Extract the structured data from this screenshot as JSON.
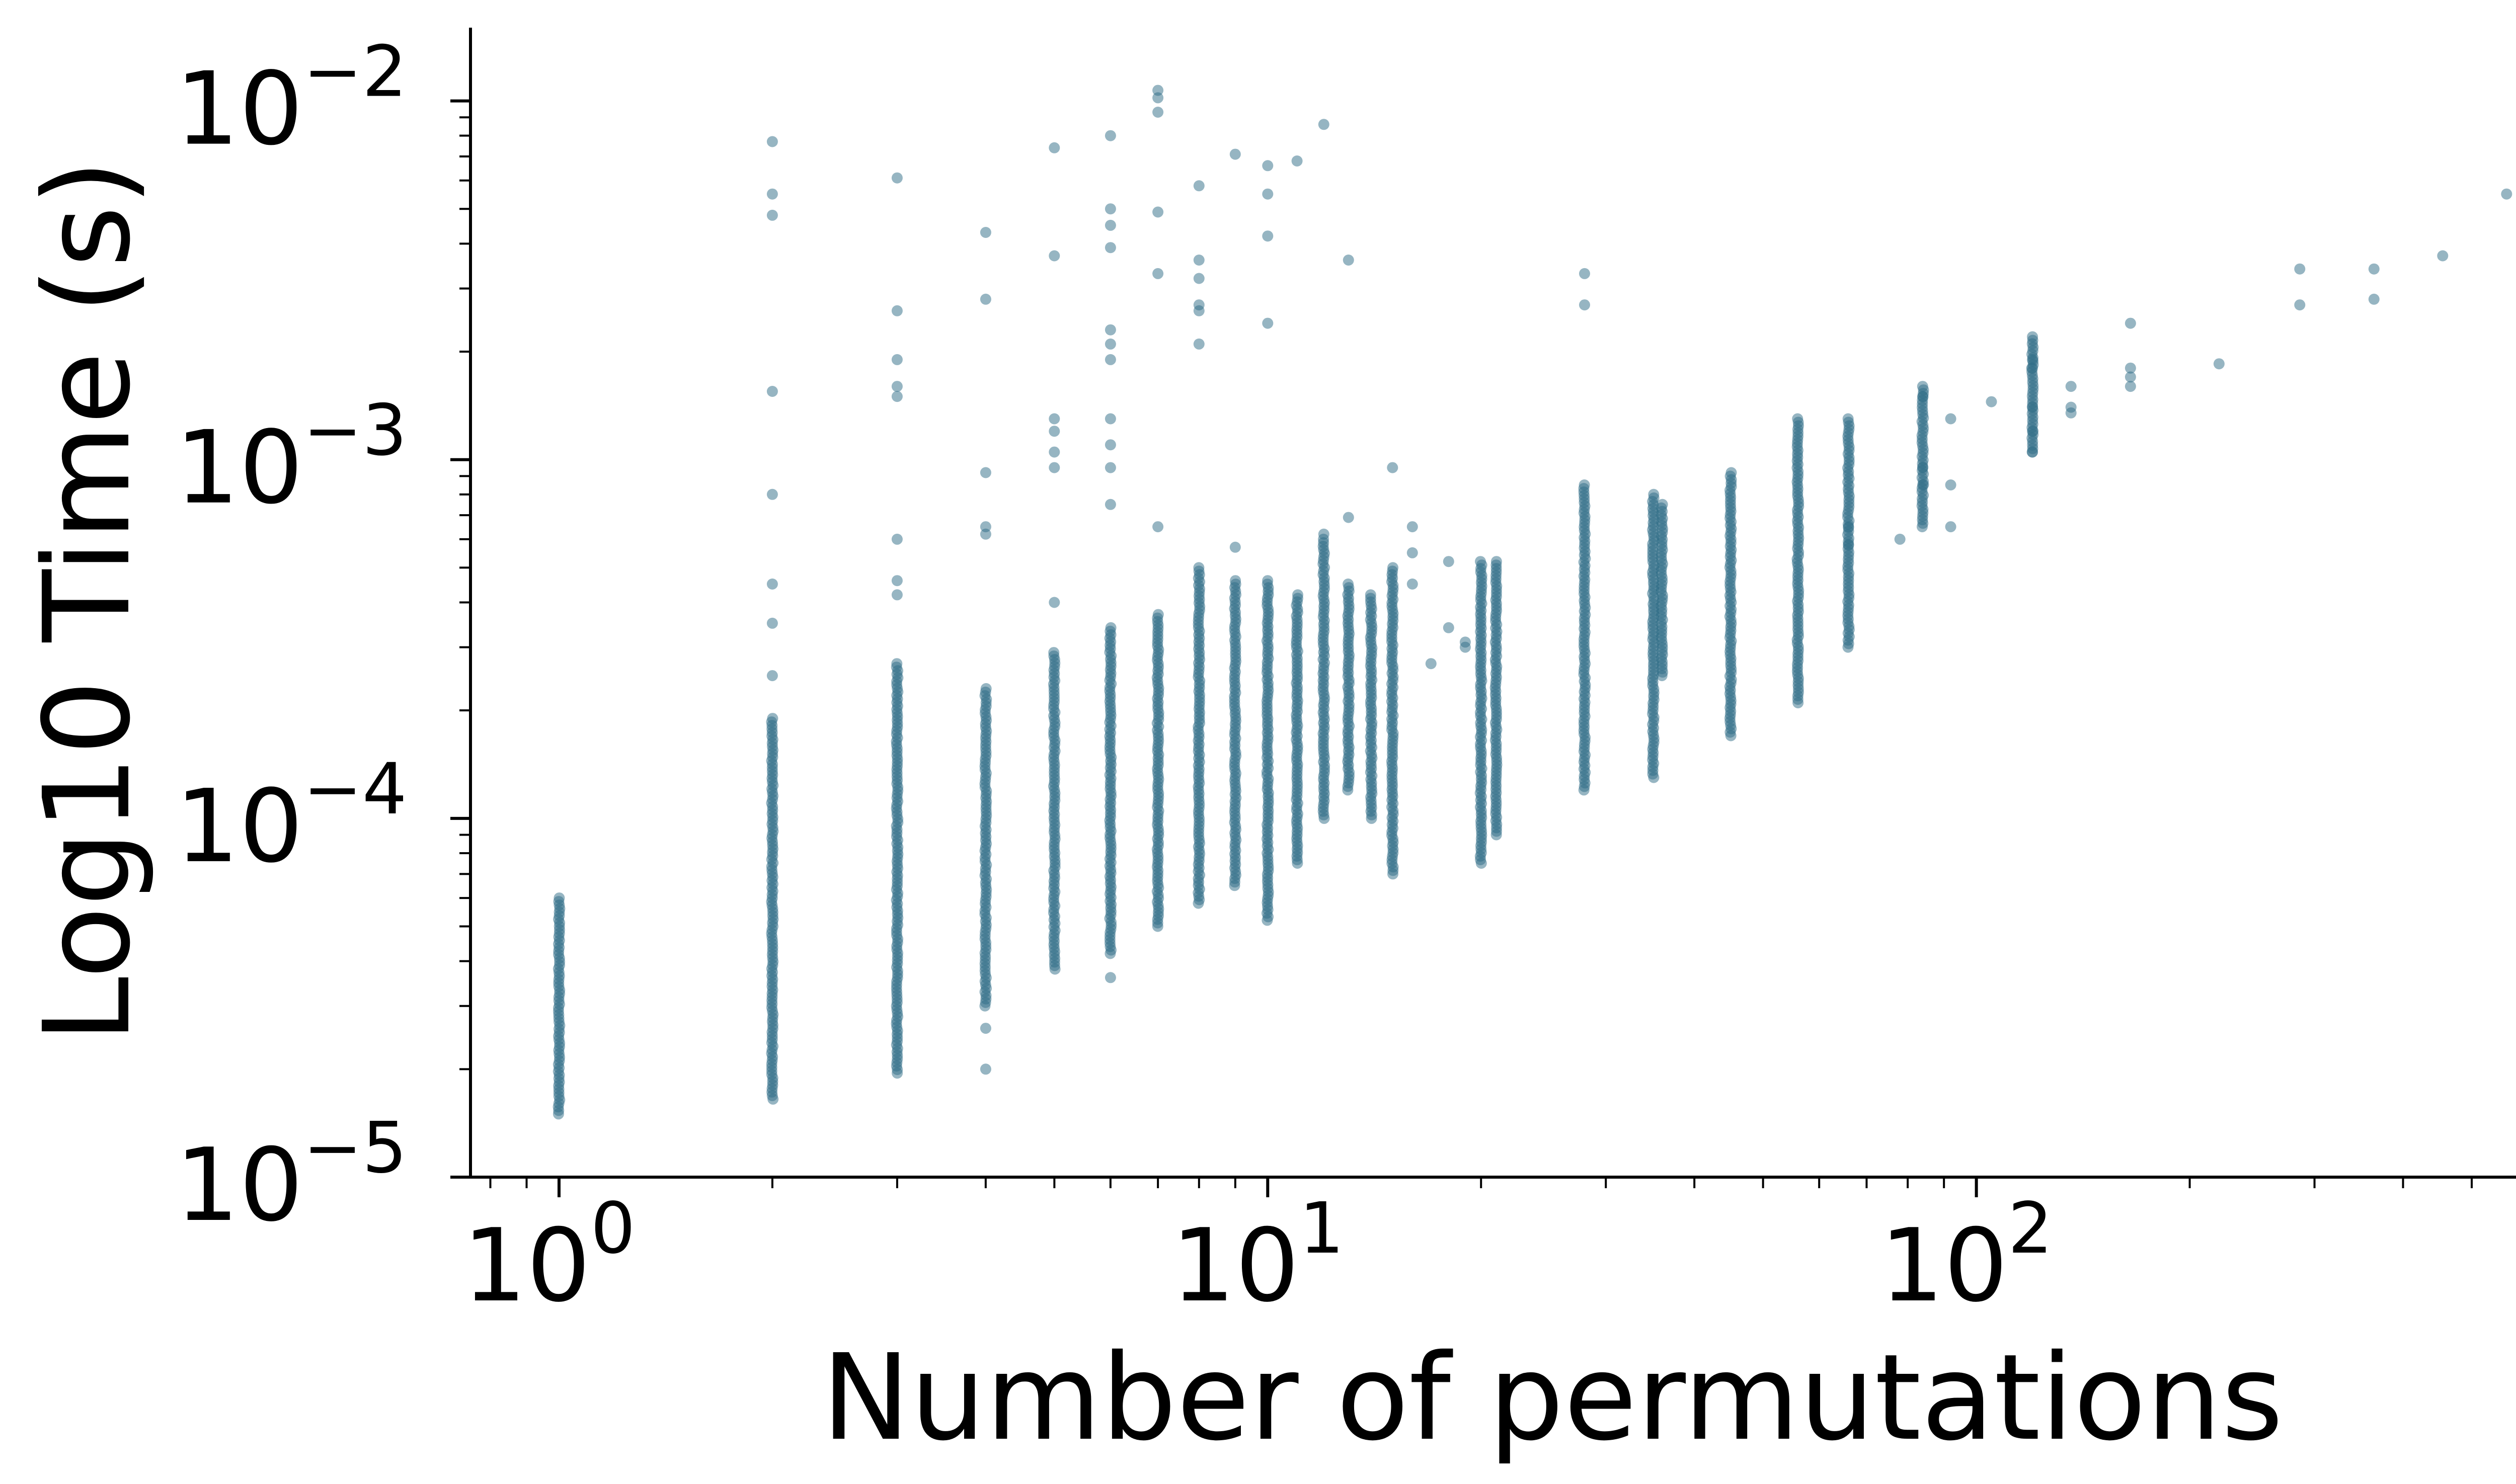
{
  "chart_data": {
    "type": "scatter",
    "xlabel": "Number of permutations",
    "ylabel": "Log10 Time (s)",
    "x_scale": "log",
    "y_scale": "log",
    "xlim": [
      0.75,
      750
    ],
    "ylim": [
      1e-05,
      0.016
    ],
    "grid": false,
    "legend": "none",
    "marker_color": "#2e6b86",
    "marker_opacity": 0.5,
    "x_ticks": [
      {
        "base": "10",
        "exp": "0"
      },
      {
        "base": "10",
        "exp": "1"
      },
      {
        "base": "10",
        "exp": "2"
      }
    ],
    "y_ticks": [
      {
        "base": "10",
        "exp": "−5"
      },
      {
        "base": "10",
        "exp": "−4"
      },
      {
        "base": "10",
        "exp": "−3"
      },
      {
        "base": "10",
        "exp": "−2"
      }
    ],
    "x_tick_values": [
      1,
      10,
      100
    ],
    "y_tick_values": [
      1e-05,
      0.0001,
      0.001,
      0.01
    ],
    "column_ranges": [
      {
        "x": 1,
        "ymin": 1.5e-05,
        "ymax": 6e-05
      },
      {
        "x": 2,
        "ymin": 1.65e-05,
        "ymax": 0.00019
      },
      {
        "x": 3,
        "ymin": 1.95e-05,
        "ymax": 0.00027
      },
      {
        "x": 4,
        "ymin": 3e-05,
        "ymax": 0.00023
      },
      {
        "x": 5,
        "ymin": 3.8e-05,
        "ymax": 0.00029
      },
      {
        "x": 6,
        "ymin": 4.2e-05,
        "ymax": 0.00034
      },
      {
        "x": 7,
        "ymin": 5e-05,
        "ymax": 0.00037
      },
      {
        "x": 8,
        "ymin": 5.8e-05,
        "ymax": 0.0005
      },
      {
        "x": 9,
        "ymin": 6.5e-05,
        "ymax": 0.00046
      },
      {
        "x": 10,
        "ymin": 5.2e-05,
        "ymax": 0.00046
      },
      {
        "x": 11,
        "ymin": 7.5e-05,
        "ymax": 0.00042
      },
      {
        "x": 12,
        "ymin": 0.0001,
        "ymax": 0.0006
      },
      {
        "x": 13,
        "ymin": 0.00012,
        "ymax": 0.00045
      },
      {
        "x": 14,
        "ymin": 0.0001,
        "ymax": 0.00042
      },
      {
        "x": 15,
        "ymin": 7e-05,
        "ymax": 0.0005
      },
      {
        "x": 20,
        "ymin": 7.5e-05,
        "ymax": 0.00052
      },
      {
        "x": 21,
        "ymin": 9e-05,
        "ymax": 0.00052
      },
      {
        "x": 28,
        "ymin": 0.00012,
        "ymax": 0.00085
      },
      {
        "x": 35,
        "ymin": 0.00013,
        "ymax": 0.0008
      },
      {
        "x": 36,
        "ymin": 0.00025,
        "ymax": 0.00075
      },
      {
        "x": 45,
        "ymin": 0.00017,
        "ymax": 0.00092
      },
      {
        "x": 56,
        "ymin": 0.00021,
        "ymax": 0.0013
      },
      {
        "x": 66,
        "ymin": 0.0003,
        "ymax": 0.0013
      },
      {
        "x": 84,
        "ymin": 0.00065,
        "ymax": 0.0016
      },
      {
        "x": 120,
        "ymin": 0.00105,
        "ymax": 0.0022
      }
    ],
    "points": [
      [
        2,
        0.0077
      ],
      [
        2,
        0.0055
      ],
      [
        2,
        0.0048
      ],
      [
        2,
        0.00155
      ],
      [
        2,
        0.0008
      ],
      [
        2,
        0.00045
      ],
      [
        2,
        0.00035
      ],
      [
        2,
        0.00025
      ],
      [
        3,
        0.0061
      ],
      [
        3,
        0.0026
      ],
      [
        3,
        0.0019
      ],
      [
        3,
        0.0016
      ],
      [
        3,
        0.0015
      ],
      [
        3,
        0.0006
      ],
      [
        3,
        0.00046
      ],
      [
        3,
        0.00042
      ],
      [
        4,
        0.0043
      ],
      [
        4,
        0.0028
      ],
      [
        4,
        0.00092
      ],
      [
        4,
        0.00065
      ],
      [
        4,
        0.00062
      ],
      [
        4,
        2.6e-05
      ],
      [
        4,
        2e-05
      ],
      [
        5,
        0.0074
      ],
      [
        5,
        0.0037
      ],
      [
        5,
        0.0013
      ],
      [
        5,
        0.0012
      ],
      [
        5,
        0.00105
      ],
      [
        5,
        0.00095
      ],
      [
        5,
        0.0004
      ],
      [
        6,
        0.008
      ],
      [
        6,
        0.005
      ],
      [
        6,
        0.0045
      ],
      [
        6,
        0.0039
      ],
      [
        6,
        0.0023
      ],
      [
        6,
        0.0021
      ],
      [
        6,
        0.0019
      ],
      [
        6,
        0.0013
      ],
      [
        6,
        0.0011
      ],
      [
        6,
        0.00095
      ],
      [
        6,
        0.00075
      ],
      [
        6,
        3.6e-05
      ],
      [
        7,
        0.0107
      ],
      [
        7,
        0.0102
      ],
      [
        7,
        0.0093
      ],
      [
        7,
        0.0049
      ],
      [
        7,
        0.0033
      ],
      [
        7,
        0.00065
      ],
      [
        8,
        0.0058
      ],
      [
        8,
        0.0036
      ],
      [
        8,
        0.0032
      ],
      [
        8,
        0.0027
      ],
      [
        8,
        0.0026
      ],
      [
        8,
        0.0021
      ],
      [
        9,
        0.0071
      ],
      [
        9,
        0.00057
      ],
      [
        10,
        0.0066
      ],
      [
        10,
        0.0055
      ],
      [
        10,
        0.0042
      ],
      [
        10,
        0.0024
      ],
      [
        11,
        0.0068
      ],
      [
        12,
        0.0086
      ],
      [
        12,
        0.00062
      ],
      [
        13,
        0.0036
      ],
      [
        13,
        0.00069
      ],
      [
        15,
        0.00095
      ],
      [
        16,
        0.00065
      ],
      [
        16,
        0.00055
      ],
      [
        16,
        0.00045
      ],
      [
        17,
        0.00027
      ],
      [
        18,
        0.00052
      ],
      [
        18,
        0.00034
      ],
      [
        19,
        0.00031
      ],
      [
        19,
        0.0003
      ],
      [
        28,
        0.0033
      ],
      [
        28,
        0.0027
      ],
      [
        66,
        0.00065
      ],
      [
        66,
        0.00058
      ],
      [
        78,
        0.0006
      ],
      [
        84,
        0.0015
      ],
      [
        84,
        0.00095
      ],
      [
        84,
        0.00085
      ],
      [
        92,
        0.0013
      ],
      [
        92,
        0.00085
      ],
      [
        92,
        0.00065
      ],
      [
        105,
        0.00145
      ],
      [
        120,
        0.0019
      ],
      [
        120,
        0.0018
      ],
      [
        120,
        0.0014
      ],
      [
        120,
        0.0012
      ],
      [
        120,
        0.00105
      ],
      [
        136,
        0.0016
      ],
      [
        136,
        0.0014
      ],
      [
        136,
        0.00135
      ],
      [
        165,
        0.0024
      ],
      [
        165,
        0.0018
      ],
      [
        165,
        0.0017
      ],
      [
        165,
        0.0016
      ],
      [
        220,
        0.00185
      ],
      [
        286,
        0.0034
      ],
      [
        286,
        0.0027
      ],
      [
        364,
        0.0034
      ],
      [
        364,
        0.0028
      ],
      [
        455,
        0.0037
      ],
      [
        560,
        0.0055
      ]
    ]
  }
}
